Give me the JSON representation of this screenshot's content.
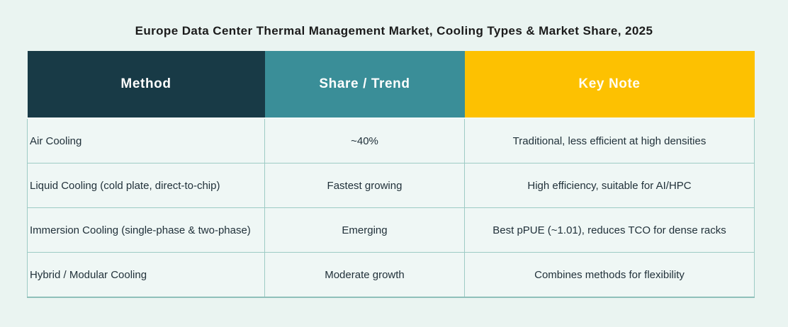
{
  "title": "Europe Data Center Thermal Management Market, Cooling Types & Market Share, 2025",
  "colors": {
    "page_background": "#eaf4f1",
    "header_method_bg": "#183a46",
    "header_share_bg": "#3a8e98",
    "header_note_bg": "#fdc101",
    "header_text": "#ffffff",
    "cell_bg": "#eff7f5",
    "cell_border": "#9ecbc5",
    "body_text": "#21313a",
    "title_text": "#1b1b1b"
  },
  "table": {
    "headers": [
      {
        "label": "Method"
      },
      {
        "label": "Share / Trend"
      },
      {
        "label": "Key Note"
      }
    ],
    "rows": [
      {
        "method": "Air Cooling",
        "share": "~40%",
        "note": "Traditional, less efficient at high densities"
      },
      {
        "method": "Liquid Cooling (cold plate, direct-to-chip)",
        "share": "Fastest growing",
        "note": "High efficiency, suitable for AI/HPC"
      },
      {
        "method": "Immersion Cooling (single-phase & two-phase)",
        "share": "Emerging",
        "note": "Best pPUE (~1.01), reduces TCO for dense racks"
      },
      {
        "method": "Hybrid / Modular Cooling",
        "share": "Moderate growth",
        "note": "Combines methods for flexibility"
      }
    ]
  },
  "chart_data": {
    "type": "table",
    "title": "Europe Data Center Thermal Management Market, Cooling Types & Market Share, 2025",
    "columns": [
      "Method",
      "Share / Trend",
      "Key Note"
    ],
    "rows": [
      [
        "Air Cooling",
        "~40%",
        "Traditional, less efficient at high densities"
      ],
      [
        "Liquid Cooling (cold plate, direct-to-chip)",
        "Fastest growing",
        "High efficiency, suitable for AI/HPC"
      ],
      [
        "Immersion Cooling (single-phase & two-phase)",
        "Emerging",
        "Best pPUE (~1.01), reduces TCO for dense racks"
      ],
      [
        "Hybrid / Modular Cooling",
        "Moderate growth",
        "Combines methods for flexibility"
      ]
    ],
    "notes": "Static infographic table; header colors dark teal / teal / gold; share values are qualitative except Air Cooling ~40% market share"
  }
}
